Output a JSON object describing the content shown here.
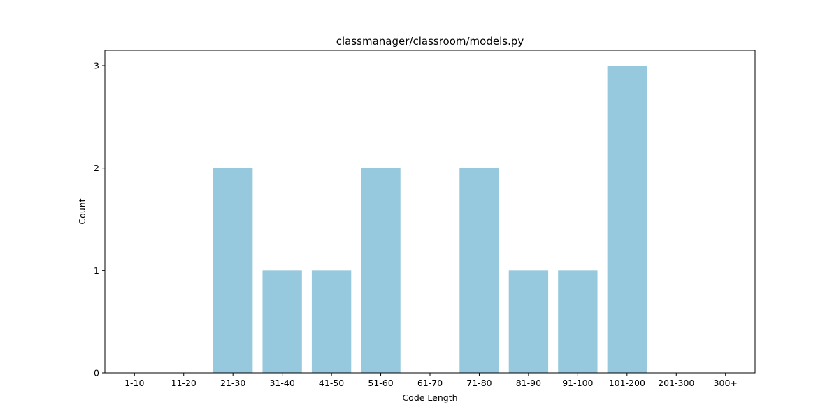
{
  "chart_data": {
    "type": "bar",
    "title": "classmanager/classroom/models.py",
    "xlabel": "Code Length",
    "ylabel": "Count",
    "categories": [
      "1-10",
      "11-20",
      "21-30",
      "31-40",
      "41-50",
      "51-60",
      "61-70",
      "71-80",
      "81-90",
      "91-100",
      "101-200",
      "201-300",
      "300+"
    ],
    "values": [
      0,
      0,
      2,
      1,
      1,
      2,
      0,
      2,
      1,
      1,
      3,
      0,
      0
    ],
    "ylim": [
      0,
      3.15
    ],
    "yticks": [
      0,
      1,
      2,
      3
    ],
    "grid": false,
    "bar_color": "#96c9dd"
  }
}
